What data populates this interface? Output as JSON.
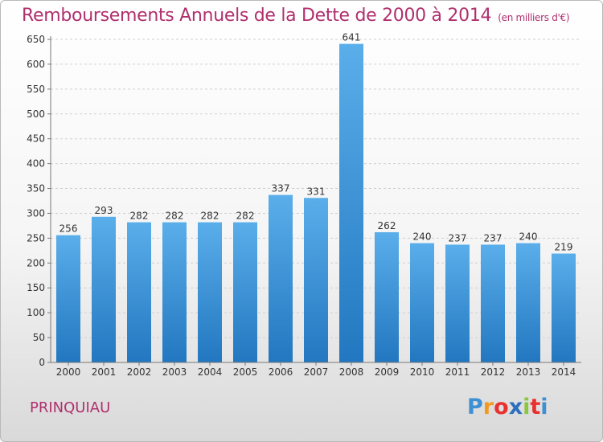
{
  "header": {
    "title": "Remboursements Annuels de la Dette de 2000 à 2014",
    "unit": "(en milliers d'€)"
  },
  "footer": {
    "city": "PRINQUIAU",
    "logo": {
      "letters": [
        "P",
        "r",
        "o",
        "x",
        "i",
        "t",
        "i"
      ],
      "colors": [
        "#3f8fd3",
        "#f29a1d",
        "#e8312f",
        "#2c6fbf",
        "#8cc63f",
        "#e8312f",
        "#3f8fd3"
      ]
    }
  },
  "chart_data": {
    "type": "bar",
    "title": "Remboursements Annuels de la Dette de 2000 à 2014",
    "categories": [
      "2000",
      "2001",
      "2002",
      "2003",
      "2004",
      "2005",
      "2006",
      "2007",
      "2008",
      "2009",
      "2010",
      "2011",
      "2012",
      "2013",
      "2014"
    ],
    "values": [
      256,
      293,
      282,
      282,
      282,
      282,
      337,
      331,
      641,
      262,
      240,
      237,
      237,
      240,
      219
    ],
    "ylim": [
      0,
      650
    ],
    "yticks": [
      0,
      50,
      100,
      150,
      200,
      250,
      300,
      350,
      400,
      450,
      500,
      550,
      600,
      650
    ],
    "grid": true,
    "bar_color": "#4a9fe0"
  }
}
